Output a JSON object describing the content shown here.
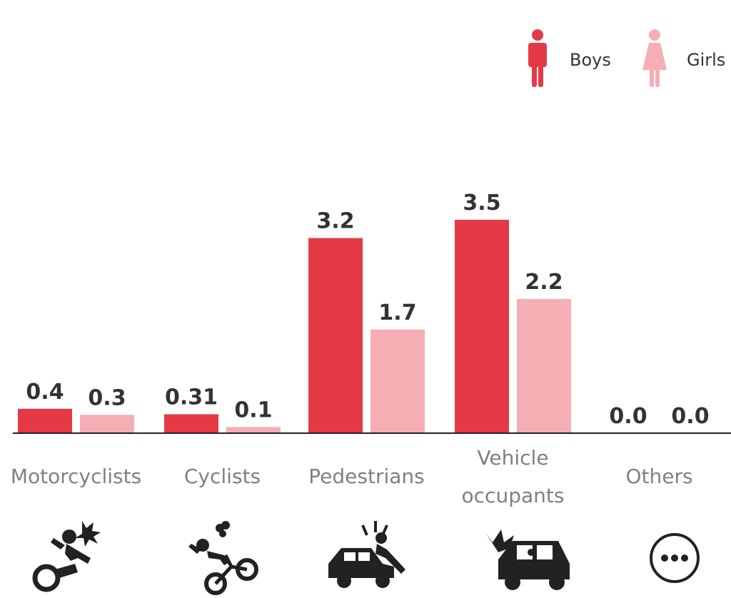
{
  "legend": {
    "boys_label": "Boys",
    "girls_label": "Girls"
  },
  "colors": {
    "boys": "#e63946",
    "girls": "#f5aeb4",
    "value_text": "#333333",
    "category_text": "#808080",
    "icon": "#222222"
  },
  "chart_data": {
    "type": "bar",
    "title": "",
    "xlabel": "",
    "ylabel": "",
    "categories": [
      "Motorcyclists",
      "Cyclists",
      "Pedestrians",
      "Vehicle occupants",
      "Others"
    ],
    "category_lines": [
      [
        "Motorcyclists"
      ],
      [
        "Cyclists"
      ],
      [
        "Pedestrians"
      ],
      [
        "Vehicle",
        "occupants"
      ],
      [
        "Others"
      ]
    ],
    "series": [
      {
        "name": "Boys",
        "values": [
          0.4,
          0.31,
          3.2,
          3.5,
          0.0
        ],
        "labels": [
          "0.4",
          "0.31",
          "3.2",
          "3.5",
          "0.0"
        ]
      },
      {
        "name": "Girls",
        "values": [
          0.3,
          0.1,
          1.7,
          2.2,
          0.0
        ],
        "labels": [
          "0.3",
          "0.1",
          "1.7",
          "2.2",
          "0.0"
        ]
      }
    ],
    "ylim": [
      0,
      3.5
    ],
    "grid": false,
    "legend_position": "top-right"
  },
  "icons": [
    "motorcyclist-crash-icon",
    "cyclist-crash-icon",
    "pedestrian-hit-icon",
    "vehicle-crash-icon",
    "more-options-icon"
  ]
}
